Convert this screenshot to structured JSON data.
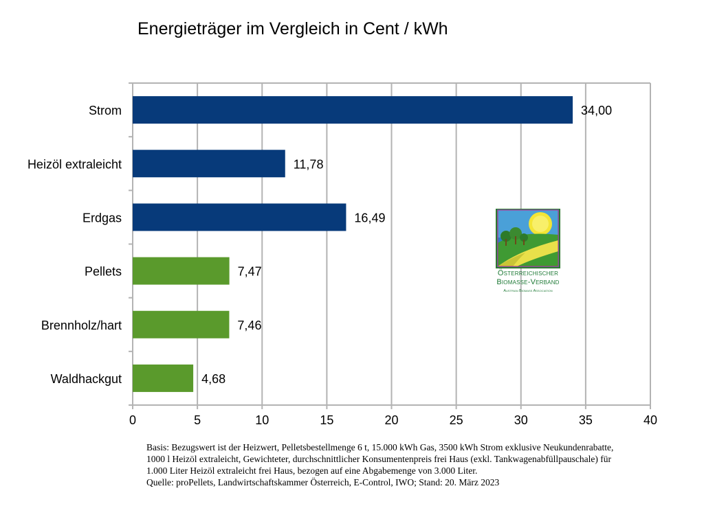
{
  "chart_data": {
    "type": "bar",
    "orientation": "horizontal",
    "title": "Energieträger im Vergleich in Cent / kWh",
    "categories": [
      "Strom",
      "Heizöl extraleicht",
      "Erdgas",
      "Pellets",
      "Brennholz/hart",
      "Waldhackgut"
    ],
    "values": [
      34.0,
      11.78,
      16.49,
      7.47,
      7.46,
      4.68
    ],
    "value_labels": [
      "34,00",
      "11,78",
      "16,49",
      "7,47",
      "7,46",
      "4,68"
    ],
    "bar_colors": [
      "#073a7a",
      "#073a7a",
      "#073a7a",
      "#5a9a2c",
      "#5a9a2c",
      "#5a9a2c"
    ],
    "xlim": [
      0,
      40
    ],
    "xticks": [
      0,
      5,
      10,
      15,
      20,
      25,
      30,
      35,
      40
    ],
    "xlabel": "",
    "ylabel": "",
    "grid": "vertical",
    "gridline_color": "#b3b3b3"
  },
  "logo": {
    "line1": "Österreichischer",
    "line2": "Biomasse-Verband",
    "line3": "Austrian Biomass Association"
  },
  "footnote": {
    "line1": "Basis: Bezugswert ist der Heizwert, Pelletsbestellmenge 6 t, 15.000 kWh Gas, 3500 kWh Strom exklusive Neukundenrabatte,",
    "line2": "1000 l Heizöl extraleicht, Gewichteter, durchschnittlicher Konsumentenpreis frei Haus (exkl. Tankwagenabfüllpauschale) für",
    "line3": "1.000 Liter Heizöl extraleicht frei Haus, bezogen auf eine Abgabemenge von 3.000 Liter.",
    "line4": "Quelle: proPellets, Landwirtschaftskammer Österreich, E-Control, IWO; Stand: 20. März 2023"
  }
}
